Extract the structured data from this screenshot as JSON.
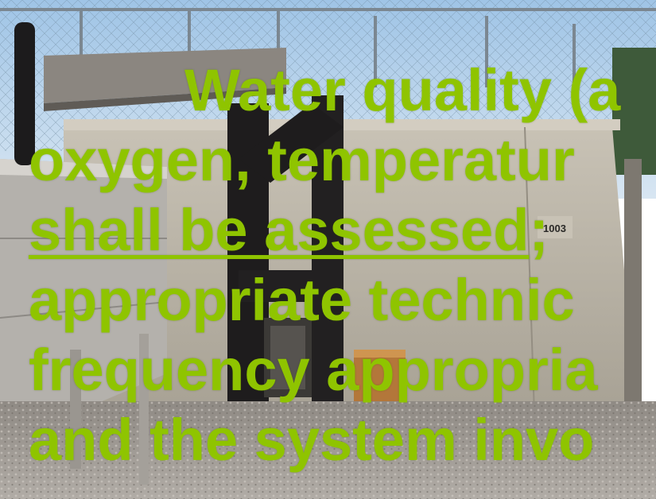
{
  "colors": {
    "overlay_text": "#8fc400",
    "sky": "#bcd7ee",
    "concrete": "#b8b2a6",
    "pipe": "#1e1c1d",
    "gravel": "#a49e98",
    "wood": "#b3773a"
  },
  "overlay": {
    "line1": "Water quality (a",
    "line2": "oxygen, temperatur",
    "line3_underlined": "shall be assessed",
    "line3_rest": ";",
    "line4": "appropriate technic",
    "line5": "frequency appropria",
    "line6": "and the system invo"
  },
  "photo": {
    "tank_label": "1003"
  }
}
